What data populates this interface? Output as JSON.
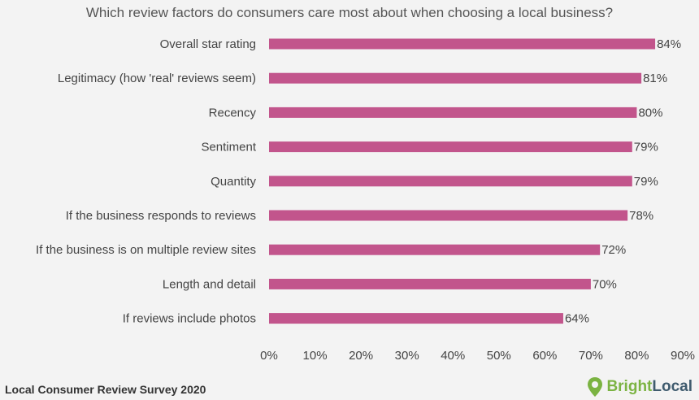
{
  "chart_data": {
    "type": "bar",
    "orientation": "horizontal",
    "title": "Which review factors do consumers care most about when choosing a local business?",
    "categories": [
      "Overall star rating",
      "Legitimacy (how 'real' reviews seem)",
      "Recency",
      "Sentiment",
      "Quantity",
      "If the business responds to reviews",
      "If the business is on multiple review sites",
      "Length and detail",
      "If reviews include photos"
    ],
    "values": [
      84,
      81,
      80,
      79,
      79,
      78,
      72,
      70,
      64
    ],
    "value_labels": [
      "84%",
      "81%",
      "80%",
      "79%",
      "79%",
      "78%",
      "72%",
      "70%",
      "64%"
    ],
    "xlim": [
      0,
      90
    ],
    "ticks": [
      0,
      10,
      20,
      30,
      40,
      50,
      60,
      70,
      80,
      90
    ],
    "tick_labels": [
      "0%",
      "10%",
      "20%",
      "30%",
      "40%",
      "50%",
      "60%",
      "70%",
      "80%",
      "90%"
    ],
    "bar_color": "#c2558c",
    "grid": false,
    "legend": "none"
  },
  "footer": {
    "source": "Local Consumer Review Survey 2020",
    "brand_parts": [
      "Bright",
      "Local"
    ],
    "brand_color": "#7bb342",
    "brand_dark_color": "#3f5b6e",
    "logo_icon": "map-pin-icon"
  }
}
